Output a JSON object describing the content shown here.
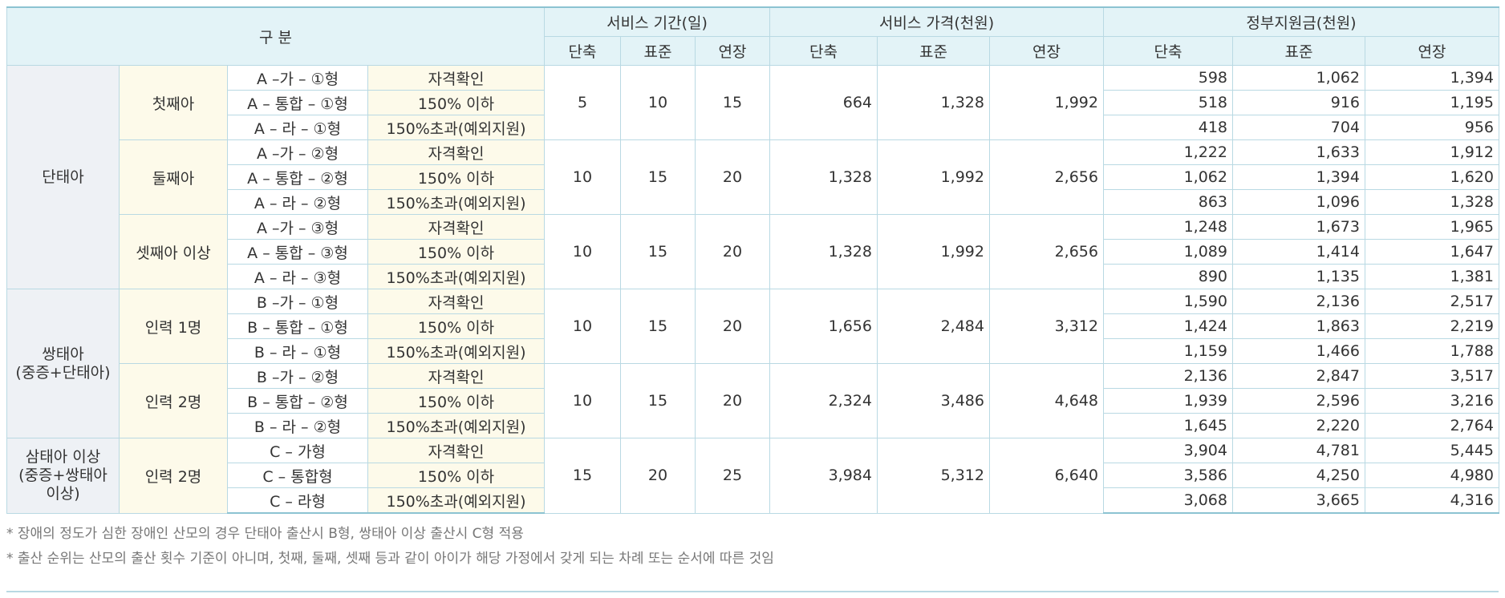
{
  "header": {
    "category": "구 분",
    "period": "서비스 기간(일)",
    "price": "서비스 가격(천원)",
    "support": "정부지원금(천원)",
    "sub": [
      "단축",
      "표준",
      "연장"
    ]
  },
  "groups": [
    {
      "name": "단태아",
      "subs": [
        {
          "name": "첫째아",
          "period": [
            "5",
            "10",
            "15"
          ],
          "price": [
            "664",
            "1,328",
            "1,992"
          ],
          "rows": [
            {
              "code": "A –가 – ①형",
              "qual": "자격확인",
              "support": [
                "598",
                "1,062",
                "1,394"
              ]
            },
            {
              "code": "A – 통합 – ①형",
              "qual": "150% 이하",
              "support": [
                "518",
                "916",
                "1,195"
              ]
            },
            {
              "code": "A – 라 – ①형",
              "qual": "150%초과(예외지원)",
              "support": [
                "418",
                "704",
                "956"
              ]
            }
          ]
        },
        {
          "name": "둘째아",
          "period": [
            "10",
            "15",
            "20"
          ],
          "price": [
            "1,328",
            "1,992",
            "2,656"
          ],
          "rows": [
            {
              "code": "A –가 – ②형",
              "qual": "자격확인",
              "support": [
                "1,222",
                "1,633",
                "1,912"
              ]
            },
            {
              "code": "A – 통합 – ②형",
              "qual": "150% 이하",
              "support": [
                "1,062",
                "1,394",
                "1,620"
              ]
            },
            {
              "code": "A – 라 – ②형",
              "qual": "150%초과(예외지원)",
              "support": [
                "863",
                "1,096",
                "1,328"
              ]
            }
          ]
        },
        {
          "name": "셋째아 이상",
          "period": [
            "10",
            "15",
            "20"
          ],
          "price": [
            "1,328",
            "1,992",
            "2,656"
          ],
          "rows": [
            {
              "code": "A –가 – ③형",
              "qual": "자격확인",
              "support": [
                "1,248",
                "1,673",
                "1,965"
              ]
            },
            {
              "code": "A – 통합 – ③형",
              "qual": "150% 이하",
              "support": [
                "1,089",
                "1,414",
                "1,647"
              ]
            },
            {
              "code": "A – 라 – ③형",
              "qual": "150%초과(예외지원)",
              "support": [
                "890",
                "1,135",
                "1,381"
              ]
            }
          ]
        }
      ]
    },
    {
      "name": "쌍태아\n(중증+단태아)",
      "subs": [
        {
          "name": "인력 1명",
          "period": [
            "10",
            "15",
            "20"
          ],
          "price": [
            "1,656",
            "2,484",
            "3,312"
          ],
          "rows": [
            {
              "code": "B –가 – ①형",
              "qual": "자격확인",
              "support": [
                "1,590",
                "2,136",
                "2,517"
              ]
            },
            {
              "code": "B – 통합 – ①형",
              "qual": "150% 이하",
              "support": [
                "1,424",
                "1,863",
                "2,219"
              ]
            },
            {
              "code": "B – 라 – ①형",
              "qual": "150%초과(예외지원)",
              "support": [
                "1,159",
                "1,466",
                "1,788"
              ]
            }
          ]
        },
        {
          "name": "인력 2명",
          "period": [
            "10",
            "15",
            "20"
          ],
          "price": [
            "2,324",
            "3,486",
            "4,648"
          ],
          "rows": [
            {
              "code": "B –가 – ②형",
              "qual": "자격확인",
              "support": [
                "2,136",
                "2,847",
                "3,517"
              ]
            },
            {
              "code": "B – 통합 – ②형",
              "qual": "150% 이하",
              "support": [
                "1,939",
                "2,596",
                "3,216"
              ]
            },
            {
              "code": "B – 라 – ②형",
              "qual": "150%초과(예외지원)",
              "support": [
                "1,645",
                "2,220",
                "2,764"
              ]
            }
          ]
        }
      ]
    },
    {
      "name": "삼태아 이상\n(중증+쌍태아\n이상)",
      "subs": [
        {
          "name": "인력 2명",
          "period": [
            "15",
            "20",
            "25"
          ],
          "price": [
            "3,984",
            "5,312",
            "6,640"
          ],
          "rows": [
            {
              "code": "C – 가형",
              "qual": "자격확인",
              "support": [
                "3,904",
                "4,781",
                "5,445"
              ]
            },
            {
              "code": "C – 통합형",
              "qual": "150% 이하",
              "support": [
                "3,586",
                "4,250",
                "4,980"
              ]
            },
            {
              "code": "C – 라형",
              "qual": "150%초과(예외지원)",
              "support": [
                "3,068",
                "3,665",
                "4,316"
              ]
            }
          ]
        }
      ]
    }
  ],
  "notes": [
    "* 장애의 정도가 심한 장애인 산모의 경우 단태아 출산시 B형, 쌍태아 이상 출산시 C형 적용",
    "* 출산 순위는 산모의 출산 횟수 기준이 아니며, 첫째, 둘째, 셋째 등과 같이 아이가 해당 가정에서 갖게 되는 차례 또는 순서에 따른 것임"
  ]
}
